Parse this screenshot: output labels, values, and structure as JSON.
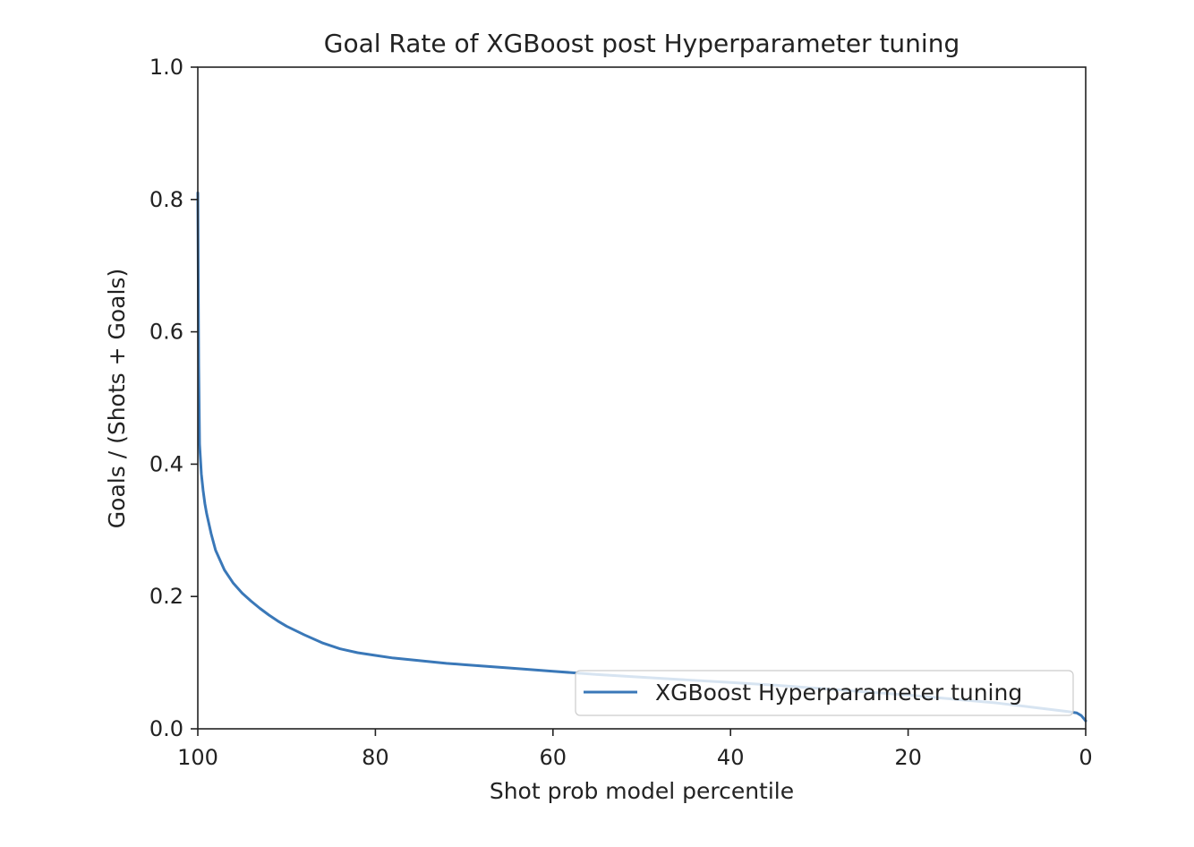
{
  "chart_data": {
    "type": "line",
    "title": "Goal Rate of XGBoost post Hyperparameter tuning",
    "xlabel": "Shot prob model percentile",
    "ylabel": "Goals / (Shots + Goals)",
    "xlim": [
      100,
      0
    ],
    "ylim": [
      0.0,
      1.0
    ],
    "x_ticks": [
      "100",
      "80",
      "60",
      "40",
      "20",
      "0"
    ],
    "x_tick_values": [
      100,
      80,
      60,
      40,
      20,
      0
    ],
    "y_ticks": [
      "0.0",
      "0.2",
      "0.4",
      "0.6",
      "0.8",
      "1.0"
    ],
    "y_tick_values": [
      0.0,
      0.2,
      0.4,
      0.6,
      0.8,
      1.0
    ],
    "grid": false,
    "legend_position": "lower-right",
    "series": [
      {
        "name": "XGBoost Hyperparameter tuning",
        "color": "#3a78b8",
        "x": [
          100,
          99.9,
          99.8,
          99.6,
          99.4,
          99.2,
          99,
          98.5,
          98,
          97,
          96,
          95,
          94,
          93,
          92,
          91,
          90,
          88,
          86,
          84,
          82,
          80,
          78,
          75,
          72,
          70,
          65,
          60,
          55,
          50,
          45,
          40,
          35,
          30,
          25,
          20,
          15,
          10,
          5,
          2,
          1,
          0.5,
          0
        ],
        "y": [
          0.81,
          0.55,
          0.43,
          0.385,
          0.36,
          0.34,
          0.325,
          0.295,
          0.27,
          0.24,
          0.22,
          0.205,
          0.193,
          0.182,
          0.172,
          0.163,
          0.155,
          0.142,
          0.13,
          0.121,
          0.115,
          0.111,
          0.107,
          0.103,
          0.099,
          0.097,
          0.092,
          0.087,
          0.082,
          0.078,
          0.074,
          0.07,
          0.066,
          0.061,
          0.056,
          0.051,
          0.045,
          0.039,
          0.031,
          0.026,
          0.024,
          0.02,
          0.012
        ]
      }
    ]
  }
}
